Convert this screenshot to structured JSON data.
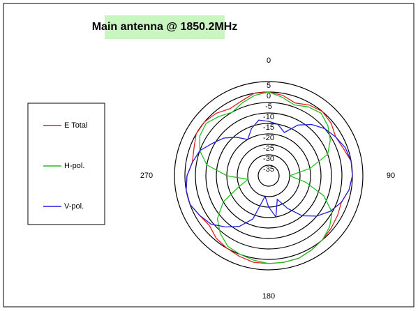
{
  "chart_data": {
    "type": "polar",
    "title": "Main antenna @ 1850.2MHz",
    "theta": [
      0,
      10,
      20,
      30,
      40,
      50,
      60,
      70,
      80,
      90,
      100,
      110,
      120,
      130,
      140,
      150,
      160,
      170,
      180,
      190,
      200,
      210,
      220,
      230,
      240,
      250,
      260,
      270,
      280,
      290,
      300,
      310,
      320,
      330,
      340,
      350
    ],
    "series": [
      {
        "name": "E Total",
        "color": "#e02020",
        "values": [
          0,
          -1,
          -3,
          -1,
          0,
          -1,
          -3,
          -2,
          0,
          0,
          -1,
          -3,
          -2,
          -1,
          0,
          1,
          2,
          2,
          2,
          2,
          1,
          0,
          -1,
          -3,
          -2,
          0,
          0,
          -1,
          -3,
          -2,
          0,
          0,
          -1,
          -3,
          -2,
          0
        ]
      },
      {
        "name": "H-pol.",
        "color": "#20c020",
        "values": [
          0,
          -2,
          -4,
          -2,
          -1,
          -3,
          -6,
          -10,
          -20,
          -30,
          -22,
          -12,
          -5,
          -2,
          0,
          1,
          2,
          2,
          2,
          1,
          0,
          -1,
          -4,
          -8,
          -15,
          -25,
          -30,
          -20,
          -10,
          -5,
          -2,
          -1,
          -3,
          -5,
          -3,
          -1
        ]
      },
      {
        "name": "V-pol.",
        "color": "#2020e0",
        "values": [
          -14,
          -15,
          -18,
          -12,
          -8,
          -5,
          -3,
          -1,
          0,
          0,
          -1,
          -3,
          -6,
          -10,
          -15,
          -22,
          -28,
          -20,
          -25,
          -30,
          -18,
          -12,
          -8,
          -4,
          -2,
          0,
          0,
          -1,
          -3,
          -5,
          -9,
          -12,
          -16,
          -20,
          -16,
          -13
        ]
      }
    ],
    "rlim": [
      -40,
      5
    ],
    "rticks": [
      -35,
      -30,
      -25,
      -20,
      -15,
      -10,
      -5,
      0,
      5
    ],
    "thetaticks": [
      0,
      90,
      180,
      270
    ]
  }
}
